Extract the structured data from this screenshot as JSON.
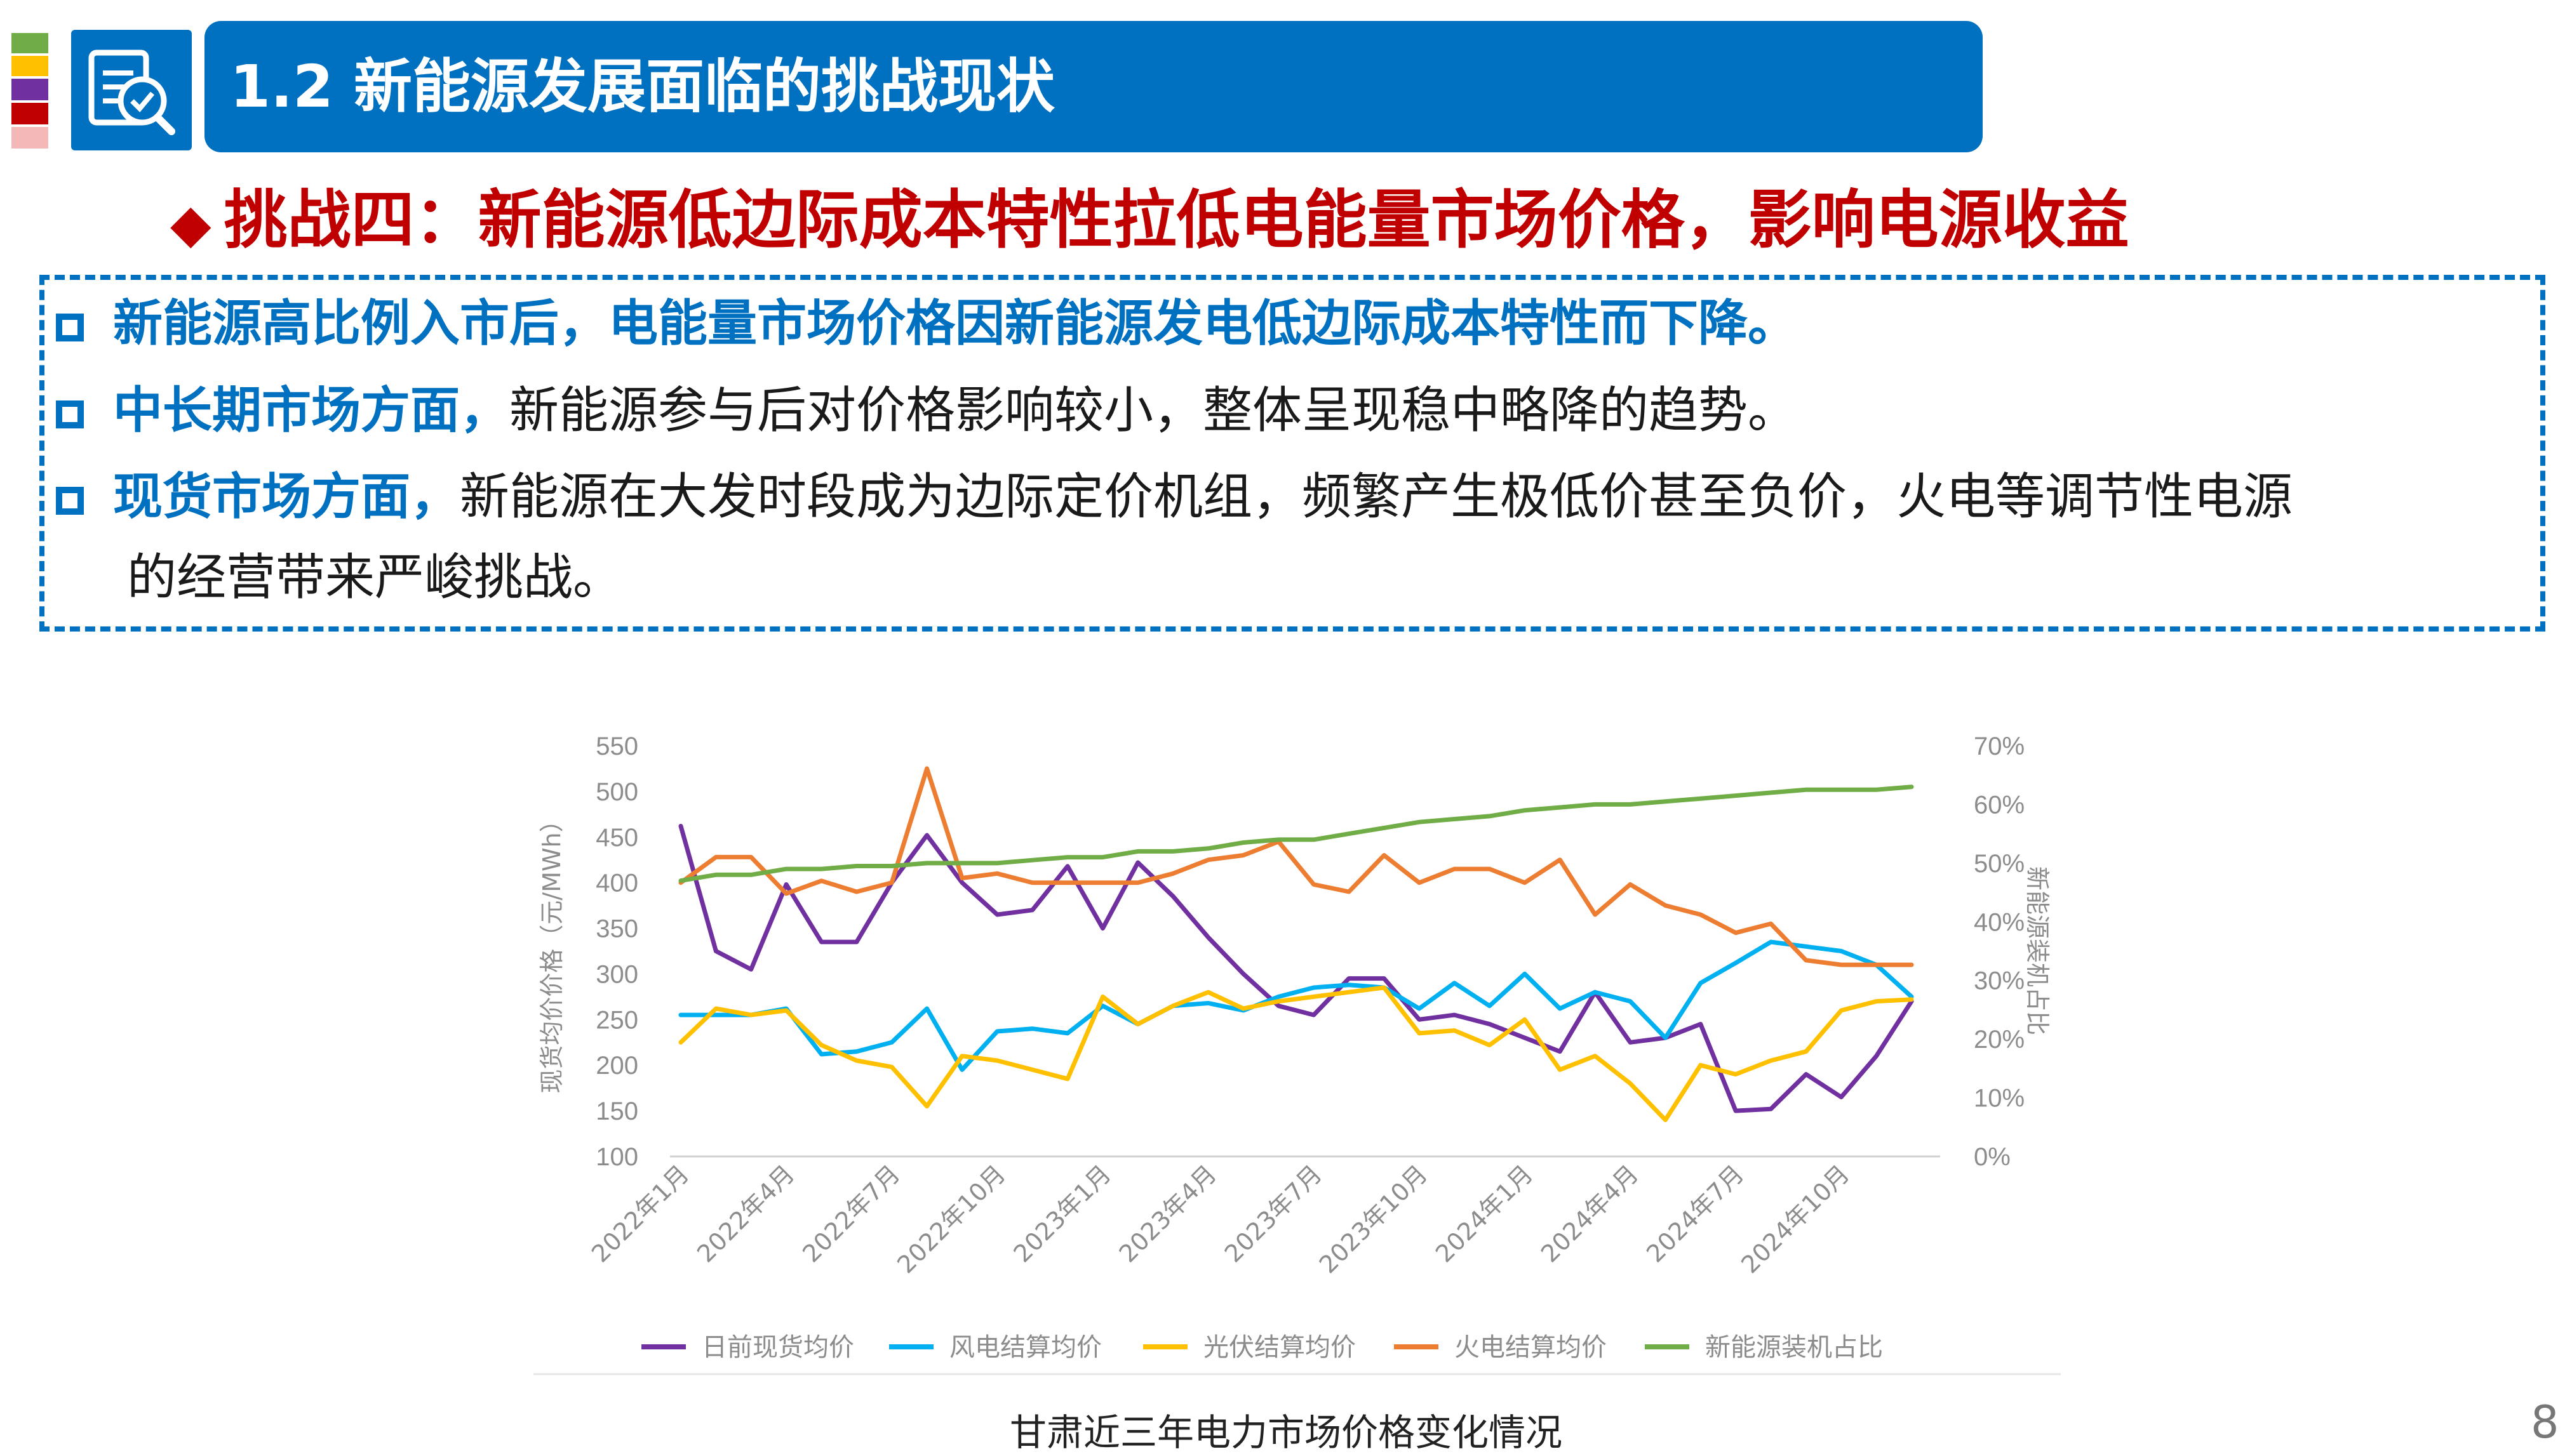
{
  "slide": {
    "title": "1.2 新能源发展面临的挑战现状",
    "challenge_heading": "挑战四：新能源低边际成本特性拉低电能量市场价格，影响电源收益",
    "caption": "甘肃近三年电力市场价格变化情况",
    "page_number": "8",
    "stripe_colors": [
      "#70ad47",
      "#ffc000",
      "#7030a0",
      "#c00000",
      "#f4b8b8"
    ],
    "header_icon": "search-document-icon",
    "bullets": [
      {
        "lead": "新能源高比例入市后，电能量市场价格因新能源发电低边际成本特性而下降。",
        "text": ""
      },
      {
        "lead": "中长期市场方面，",
        "text": "新能源参与后对价格影响较小，整体呈现稳中略降的趋势。"
      },
      {
        "lead": "现货市场方面，",
        "text": "新能源在大发时段成为边际定价机组，频繁产生极低价甚至负价，火电等调节性电源",
        "text_cont": "的经营带来严峻挑战。"
      }
    ]
  },
  "chart_data": {
    "type": "line",
    "ylabel": "现货均价价格（元/MWh）",
    "y2label": "新能源装机占比",
    "ylim": [
      100,
      550
    ],
    "y2lim": [
      0,
      70
    ],
    "yticks": [
      "550",
      "500",
      "450",
      "400",
      "350",
      "300",
      "250",
      "200",
      "150",
      "100"
    ],
    "y2ticks": [
      "70%",
      "60%",
      "50%",
      "40%",
      "30%",
      "20%",
      "10%",
      "0%"
    ],
    "xticks": [
      "2022年1月",
      "2022年4月",
      "2022年7月",
      "2022年10月",
      "2023年1月",
      "2023年4月",
      "2023年7月",
      "2023年10月",
      "2024年1月",
      "2024年4月",
      "2024年7月",
      "2024年10月"
    ],
    "grid": false,
    "legend_position": "bottom",
    "series": [
      {
        "name": "日前现货均价",
        "axis": "left",
        "color": "#7030a0",
        "values": [
          462,
          325,
          305,
          398,
          335,
          335,
          400,
          452,
          400,
          365,
          370,
          418,
          350,
          422,
          385,
          340,
          300,
          265,
          255,
          295,
          295,
          250,
          255,
          245,
          230,
          215,
          280,
          225,
          230,
          245,
          150,
          152,
          190,
          165,
          210,
          270
        ]
      },
      {
        "name": "风电结算均价",
        "axis": "left",
        "color": "#00b0f0",
        "values": [
          255,
          255,
          255,
          262,
          212,
          215,
          225,
          262,
          195,
          237,
          240,
          235,
          265,
          245,
          265,
          268,
          260,
          275,
          285,
          288,
          285,
          262,
          290,
          265,
          300,
          262,
          280,
          270,
          230,
          290,
          312,
          335,
          330,
          325,
          310,
          275
        ]
      },
      {
        "name": "光伏结算均价",
        "axis": "left",
        "color": "#ffc000",
        "values": [
          225,
          262,
          255,
          260,
          222,
          205,
          198,
          155,
          210,
          205,
          195,
          185,
          275,
          245,
          265,
          280,
          262,
          270,
          275,
          280,
          285,
          235,
          238,
          222,
          250,
          195,
          210,
          180,
          140,
          200,
          190,
          205,
          215,
          260,
          270,
          272
        ]
      },
      {
        "name": "火电结算均价",
        "axis": "left",
        "color": "#ed7d31",
        "values": [
          400,
          428,
          428,
          388,
          402,
          390,
          400,
          525,
          405,
          410,
          400,
          400,
          400,
          400,
          410,
          425,
          430,
          445,
          398,
          390,
          430,
          400,
          415,
          415,
          400,
          425,
          365,
          398,
          375,
          365,
          345,
          355,
          315,
          310,
          310,
          310
        ]
      },
      {
        "name": "新能源装机占比",
        "axis": "right",
        "color": "#70ad47",
        "values": [
          47,
          48,
          48,
          49,
          49,
          49.5,
          49.5,
          50,
          50,
          50,
          50.5,
          51,
          51,
          52,
          52,
          52.5,
          53.5,
          54,
          54,
          55,
          56,
          57,
          57.5,
          58,
          59,
          59.5,
          60,
          60,
          60.5,
          61,
          61.5,
          62,
          62.5,
          62.5,
          62.5,
          63
        ]
      }
    ]
  }
}
